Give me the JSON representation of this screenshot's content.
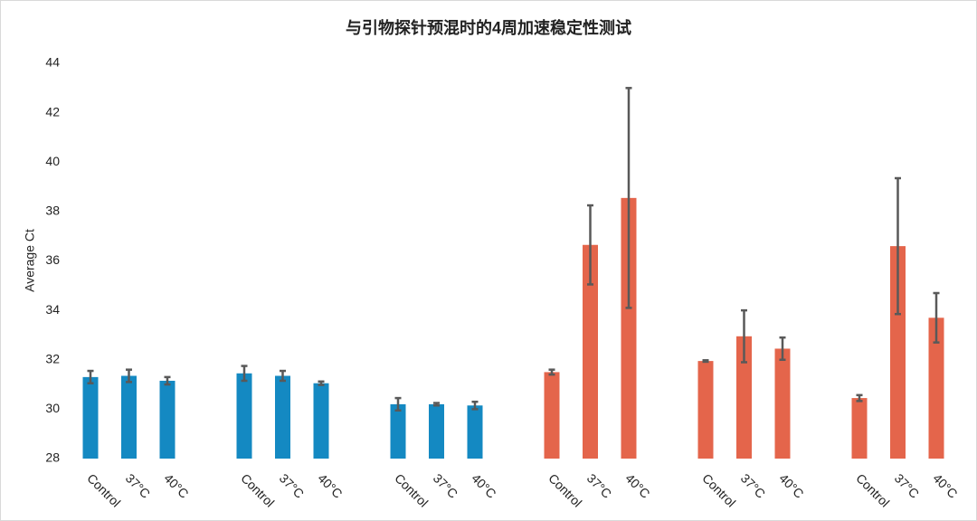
{
  "chart_data": {
    "type": "bar",
    "title": "与引物探针预混时的4周加速稳定性测试",
    "y_label": "Average Ct",
    "categories": [
      "Control",
      "37°C",
      "40°C",
      "Control",
      "37°C",
      "40°C",
      "Control",
      "37°C",
      "40°C",
      "Control",
      "37°C",
      "40°C",
      "Control",
      "37°C",
      "40°C",
      "Control",
      "37°C",
      "40°C"
    ],
    "values": [
      31.3,
      31.35,
      31.15,
      31.45,
      31.35,
      31.05,
      30.2,
      30.2,
      30.15,
      31.5,
      36.65,
      38.55,
      31.95,
      32.95,
      32.45,
      30.45,
      36.6,
      33.7
    ],
    "errors": [
      0.25,
      0.25,
      0.15,
      0.3,
      0.2,
      0.07,
      0.25,
      0.05,
      0.15,
      0.1,
      1.6,
      4.45,
      0.03,
      1.05,
      0.45,
      0.12,
      2.75,
      1.0
    ],
    "colors": [
      "#1489c2",
      "#1489c2",
      "#1489c2",
      "#1489c2",
      "#1489c2",
      "#1489c2",
      "#1489c2",
      "#1489c2",
      "#1489c2",
      "#e4654b",
      "#e4654b",
      "#e4654b",
      "#e4654b",
      "#e4654b",
      "#e4654b",
      "#e4654b",
      "#e4654b",
      "#e4654b"
    ],
    "error_color": "#595959",
    "ylim": [
      28,
      44
    ],
    "yticks": [
      28,
      30,
      32,
      34,
      36,
      38,
      40,
      42,
      44
    ],
    "grid": false
  }
}
